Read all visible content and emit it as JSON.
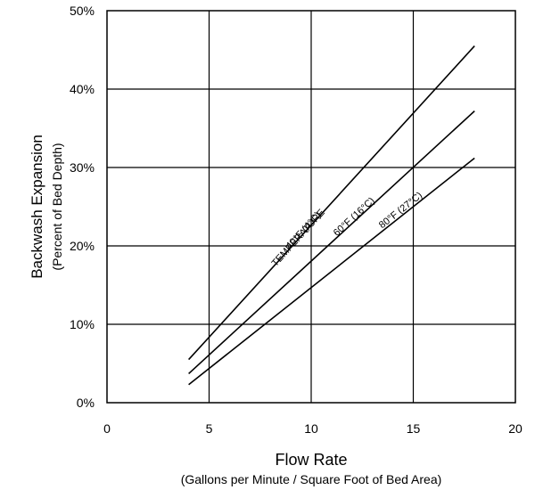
{
  "chart_data": {
    "type": "line",
    "title": "",
    "xlabel": "Flow Rate",
    "xsublabel": "(Gallons per Minute / Square Foot of Bed Area)",
    "ylabel": "Backwash Expansion",
    "ysublabel": "(Percent of Bed Depth)",
    "xlim": [
      0,
      20
    ],
    "ylim": [
      0,
      50
    ],
    "x_ticks": [
      "0",
      "5",
      "10",
      "15",
      "20"
    ],
    "y_ticks": [
      "0%",
      "10%",
      "20%",
      "30%",
      "40%",
      "50%"
    ],
    "grid": true,
    "legend": "none",
    "annotation_title": "TEMPERATURE",
    "series": [
      {
        "name": "40°F (4°C)",
        "x": [
          4,
          18
        ],
        "y": [
          5.5,
          45.5
        ]
      },
      {
        "name": "60°F (16°C)",
        "x": [
          4,
          18
        ],
        "y": [
          3.7,
          37.2
        ]
      },
      {
        "name": "80°F (27°C)",
        "x": [
          4,
          18
        ],
        "y": [
          2.3,
          31.2
        ]
      }
    ]
  }
}
